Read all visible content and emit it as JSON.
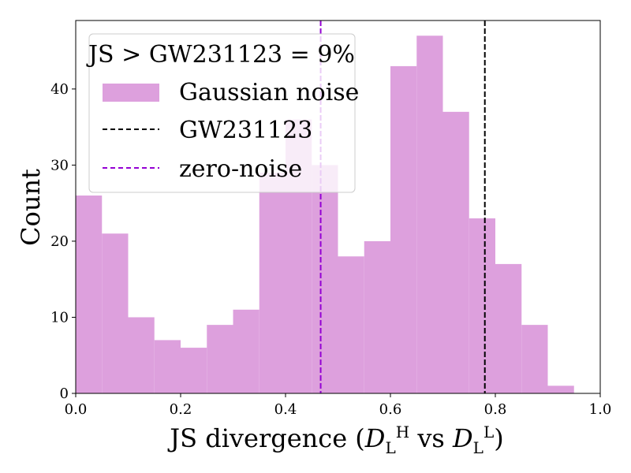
{
  "chart_data": {
    "type": "bar",
    "title": "",
    "xlabel": "JS divergence",
    "xlabel_suffix": "vs",
    "dist_symbol": "D",
    "dist_subscript": "L",
    "dist_sup_1": "H",
    "dist_sup_2": "L",
    "ylabel": "Count",
    "xlim": [
      0.0,
      1.0
    ],
    "ylim": [
      0,
      49
    ],
    "xticks": [
      0.0,
      0.2,
      0.4,
      0.6,
      0.8,
      1.0
    ],
    "xtick_labels": [
      "0.0",
      "0.2",
      "0.4",
      "0.6",
      "0.8",
      "1.0"
    ],
    "yticks": [
      0,
      10,
      20,
      30,
      40
    ],
    "ytick_labels": [
      "0",
      "10",
      "20",
      "30",
      "40"
    ],
    "bin_width": 0.05,
    "bin_starts": [
      0.0,
      0.05,
      0.1,
      0.15,
      0.2,
      0.25,
      0.3,
      0.35,
      0.4,
      0.45,
      0.5,
      0.55,
      0.6,
      0.65,
      0.7,
      0.75,
      0.8,
      0.85,
      0.9
    ],
    "values": [
      26,
      21,
      10,
      7,
      6,
      9,
      11,
      29,
      36,
      30,
      18,
      20,
      43,
      47,
      37,
      23,
      17,
      9,
      1
    ],
    "series_name": "Gaussian noise",
    "vlines": [
      {
        "name": "GW231123",
        "x": 0.78,
        "color": "#000000"
      },
      {
        "name": "zero-noise",
        "x": 0.467,
        "color": "#9400d3"
      }
    ],
    "legend_title": "JS > GW231123 = 9%",
    "legend_position": "top-left",
    "bar_color": "#dda0dd"
  }
}
